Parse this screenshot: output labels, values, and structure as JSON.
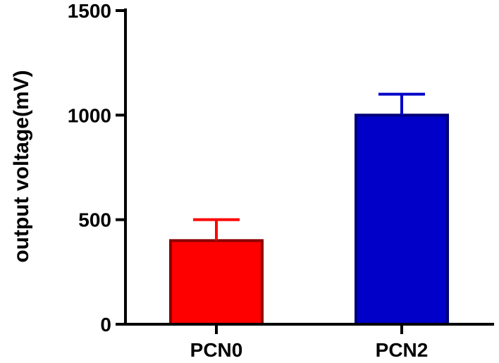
{
  "chart_data": {
    "type": "bar",
    "categories": [
      "PCN0",
      "PCN2"
    ],
    "values": [
      400,
      1000
    ],
    "error": [
      100,
      100
    ],
    "colors": [
      "#ff0000",
      "#0000c8"
    ],
    "edge_colors": [
      "#8b0000",
      "#00007a"
    ],
    "ylabel": "output voltage(mV)",
    "xlabel": "",
    "ylim": [
      0,
      1500
    ],
    "yticks": [
      0,
      500,
      1000,
      1500
    ],
    "grid": false
  }
}
